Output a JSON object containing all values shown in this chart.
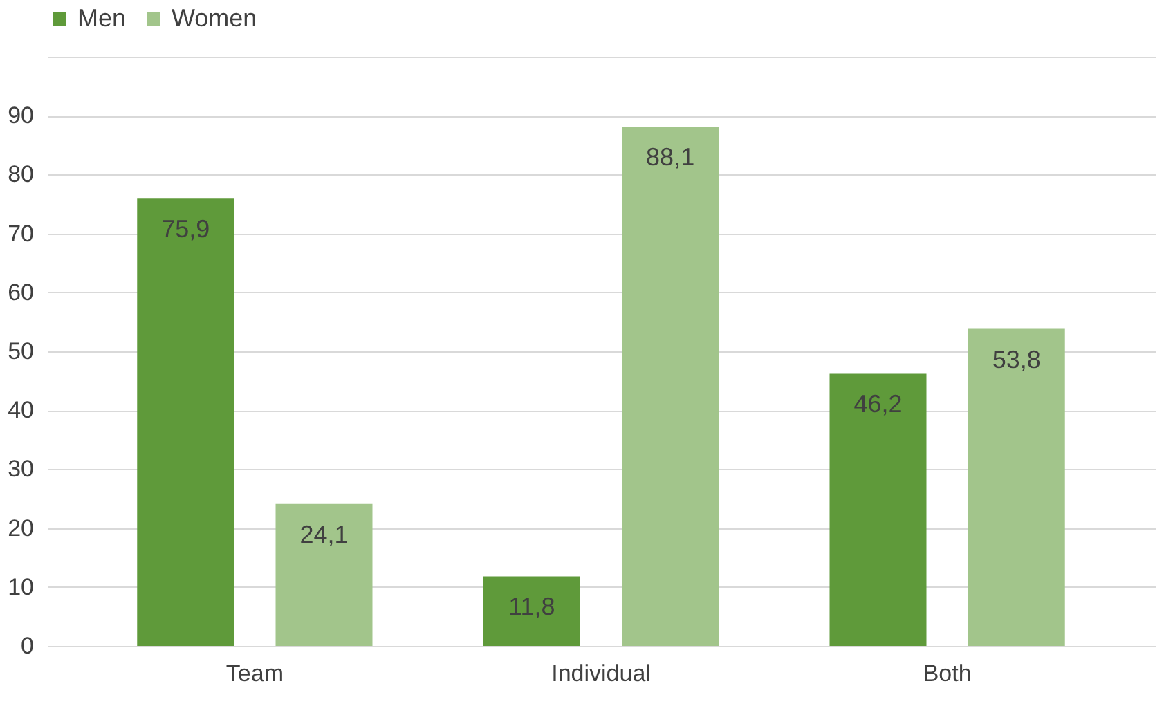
{
  "chart_data": {
    "type": "bar",
    "categories": [
      "Team",
      "Individual",
      "Both"
    ],
    "series": [
      {
        "name": "Men",
        "color": "#5f9a3a",
        "values": [
          75.9,
          11.8,
          46.2
        ],
        "value_labels": [
          "75,9",
          "11,8",
          "46,2"
        ]
      },
      {
        "name": "Women",
        "color": "#a2c58b",
        "values": [
          24.1,
          88.1,
          53.8
        ],
        "value_labels": [
          "24,1",
          "88,1",
          "53,8"
        ]
      }
    ],
    "ylim": [
      0,
      100
    ],
    "yticks": [
      0,
      10,
      20,
      30,
      40,
      50,
      60,
      70,
      80,
      90,
      {
        "value": 100,
        "label": null
      }
    ],
    "grid": "y",
    "legend": "top"
  }
}
